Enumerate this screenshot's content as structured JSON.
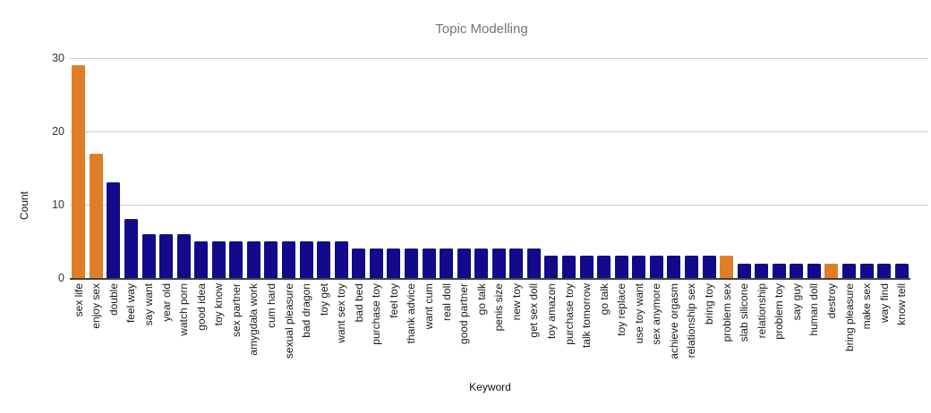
{
  "chart_data": {
    "type": "bar",
    "title": "Topic Modelling",
    "xlabel": "Keyword",
    "ylabel": "Count",
    "ylim": [
      0,
      30
    ],
    "yticks": [
      0,
      10,
      20,
      30
    ],
    "grid": true,
    "legend": "none",
    "categories": [
      "sex life",
      "enjoy sex",
      "double",
      "feel way",
      "say want",
      "year old",
      "watch porn",
      "good idea",
      "toy know",
      "sex partner",
      "amygdala work",
      "cum hard",
      "sexual pleasure",
      "bad dragon",
      "toy get",
      "want sex toy",
      "bad bed",
      "purchase toy",
      "feel toy",
      "thank advice",
      "want cum",
      "real doll",
      "good partner",
      "go talk",
      "penis size",
      "new toy",
      "get sex doll",
      "toy amazon",
      "purchase toy",
      "talk tomorrow",
      "go talk",
      "toy replace",
      "use toy want",
      "sex anymore",
      "achieve orgasm",
      "relationship sex",
      "bring toy",
      "problem sex",
      "slab silicone",
      "relationship",
      "problem toy",
      "say guy",
      "human doll",
      "destroy",
      "bring pleasure",
      "make sex",
      "way find",
      "know tell"
    ],
    "values": [
      29,
      17,
      13,
      8,
      6,
      6,
      6,
      5,
      5,
      5,
      5,
      5,
      5,
      5,
      5,
      5,
      4,
      4,
      4,
      4,
      4,
      4,
      4,
      4,
      4,
      4,
      4,
      3,
      3,
      3,
      3,
      3,
      3,
      3,
      3,
      3,
      3,
      3,
      2,
      2,
      2,
      2,
      2,
      2,
      2,
      2,
      2,
      2
    ],
    "colors": {
      "bar_default": "#120a8a",
      "bar_highlight": "#e07e28",
      "highlight_indices": [
        0,
        1,
        37,
        43
      ],
      "gridline": "#cccccc",
      "axis_line": "#424242",
      "title_text": "#757575",
      "tick_text": "#333333",
      "label_text": "#1a1a1a",
      "background": "#ffffff"
    }
  }
}
